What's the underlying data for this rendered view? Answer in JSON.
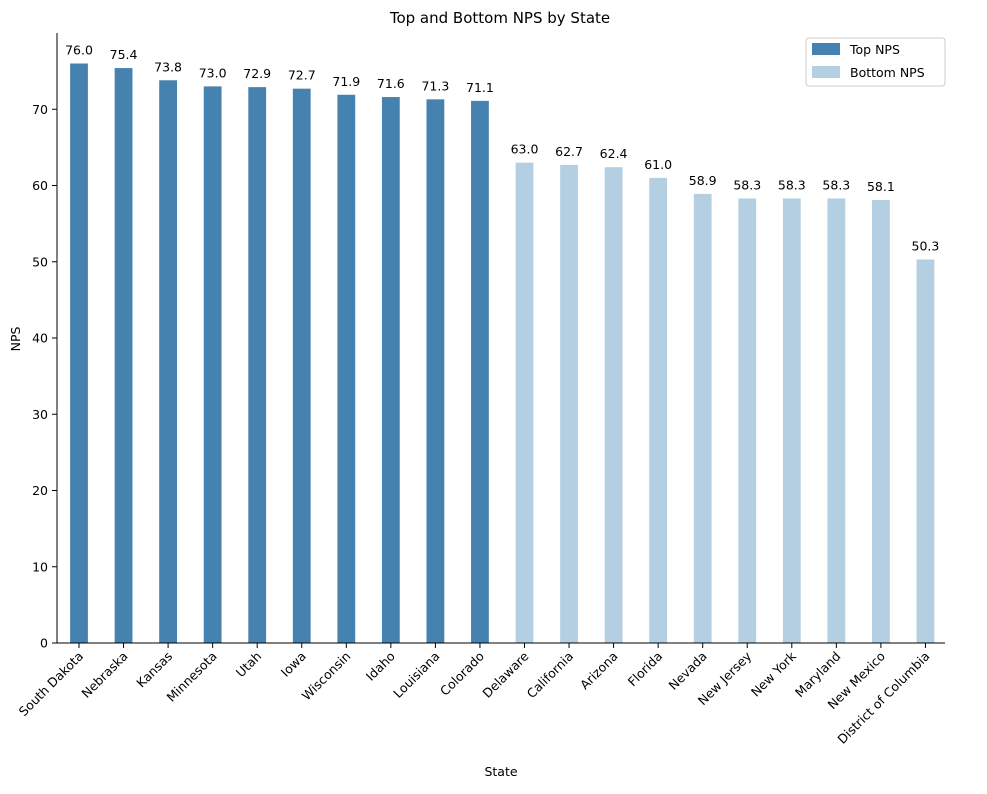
{
  "chart_data": {
    "type": "bar",
    "title": "Top and Bottom NPS by State",
    "xlabel": "State",
    "ylabel": "NPS",
    "ylim": [
      0,
      80
    ],
    "yticks": [
      0,
      10,
      20,
      30,
      40,
      50,
      60,
      70
    ],
    "grid": false,
    "legend_position": "top-right",
    "categories": [
      "South Dakota",
      "Nebraska",
      "Kansas",
      "Minnesota",
      "Utah",
      "Iowa",
      "Wisconsin",
      "Idaho",
      "Louisiana",
      "Colorado",
      "Delaware",
      "California",
      "Arizona",
      "Florida",
      "Nevada",
      "New Jersey",
      "New York",
      "Maryland",
      "New Mexico",
      "District of Columbia"
    ],
    "series": [
      {
        "name": "Top NPS",
        "color": "#4682b0",
        "values": [
          76.0,
          75.4,
          73.8,
          73.0,
          72.9,
          72.7,
          71.9,
          71.6,
          71.3,
          71.1,
          null,
          null,
          null,
          null,
          null,
          null,
          null,
          null,
          null,
          null
        ]
      },
      {
        "name": "Bottom NPS",
        "color": "#b3cfe1",
        "values": [
          null,
          null,
          null,
          null,
          null,
          null,
          null,
          null,
          null,
          null,
          63.0,
          62.7,
          62.4,
          61.0,
          58.9,
          58.3,
          58.3,
          58.3,
          58.1,
          50.3
        ]
      }
    ]
  }
}
